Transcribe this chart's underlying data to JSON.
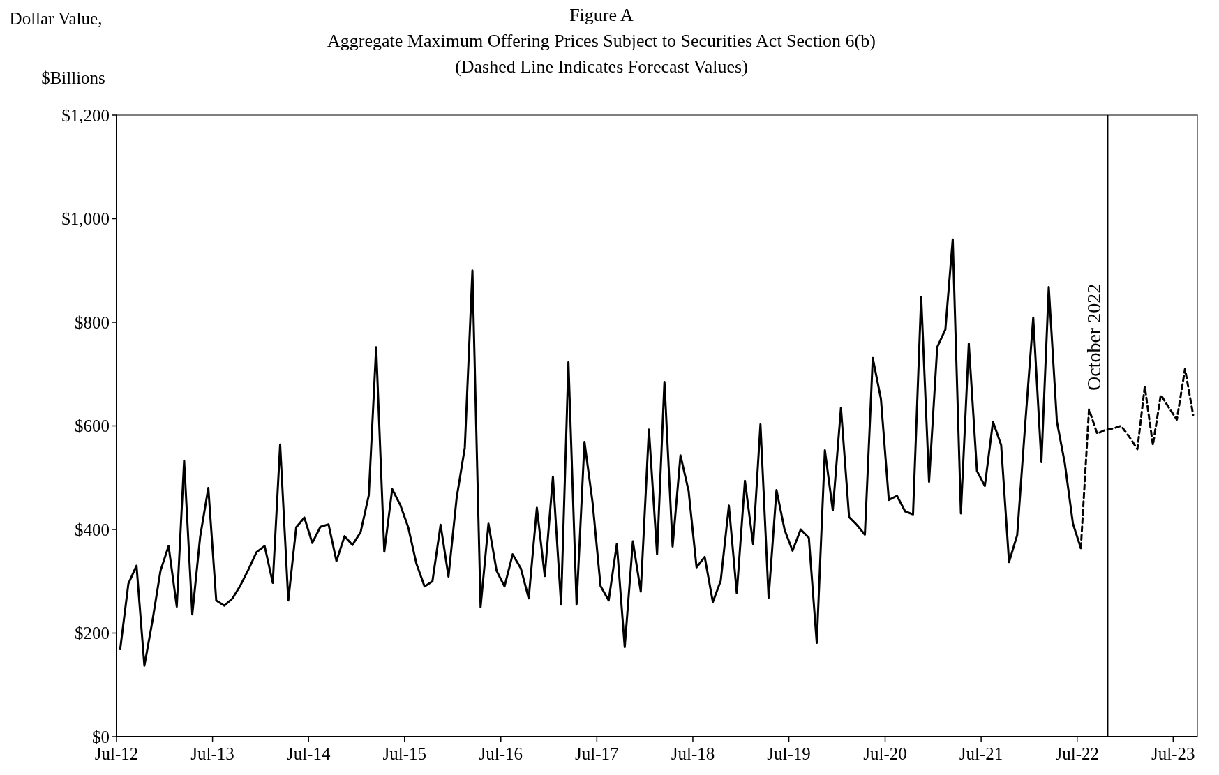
{
  "chart_data": {
    "type": "line",
    "title": "Figure A",
    "subtitle": "Aggregate Maximum Offering Prices Subject to Securities Act Section 6(b)\n(Dashed Line Indicates Forecast Values)",
    "ylabel": "Dollar Value,\n$Billions",
    "xlim": [
      "2012-07-01",
      "2023-10-01"
    ],
    "xticks": [
      {
        "value": "2012-07-01",
        "label": "Jul-12"
      },
      {
        "value": "2013-07-01",
        "label": "Jul-13"
      },
      {
        "value": "2014-07-01",
        "label": "Jul-14"
      },
      {
        "value": "2015-07-01",
        "label": "Jul-15"
      },
      {
        "value": "2016-07-01",
        "label": "Jul-16"
      },
      {
        "value": "2017-07-01",
        "label": "Jul-17"
      },
      {
        "value": "2018-07-01",
        "label": "Jul-18"
      },
      {
        "value": "2019-07-01",
        "label": "Jul-19"
      },
      {
        "value": "2020-07-01",
        "label": "Jul-20"
      },
      {
        "value": "2021-07-01",
        "label": "Jul-21"
      },
      {
        "value": "2022-07-01",
        "label": "Jul-22"
      },
      {
        "value": "2023-07-01",
        "label": "Jul-23"
      }
    ],
    "ylim": [
      0,
      1200
    ],
    "yticks": [
      {
        "value": 0,
        "label": "$0"
      },
      {
        "value": 200,
        "label": "$200"
      },
      {
        "value": 400,
        "label": "$400"
      },
      {
        "value": 600,
        "label": "$600"
      },
      {
        "value": 800,
        "label": "$800"
      },
      {
        "value": 1000,
        "label": "$1,000"
      },
      {
        "value": 1200,
        "label": "$1,200"
      }
    ],
    "grid": false,
    "marker": "none",
    "ref_lines": [
      {
        "axis": "x",
        "value": "2022-10-25",
        "label": "October 2022",
        "color": "#000000",
        "line_style": "solid"
      }
    ],
    "series": [
      {
        "color": "#000000",
        "line_style": "solid",
        "x": [
          "2012-07-15",
          "2012-08-15",
          "2012-09-15",
          "2012-10-15",
          "2012-11-15",
          "2012-12-15",
          "2013-01-15",
          "2013-02-15",
          "2013-03-15",
          "2013-04-15",
          "2013-05-15",
          "2013-06-15",
          "2013-07-15",
          "2013-08-15",
          "2013-09-15",
          "2013-10-15",
          "2013-11-15",
          "2013-12-15",
          "2014-01-15",
          "2014-02-15",
          "2014-03-15",
          "2014-04-15",
          "2014-05-15",
          "2014-06-15",
          "2014-07-15",
          "2014-08-15",
          "2014-09-15",
          "2014-10-15",
          "2014-11-15",
          "2014-12-15",
          "2015-01-15",
          "2015-02-15",
          "2015-03-15",
          "2015-04-15",
          "2015-05-15",
          "2015-06-15",
          "2015-07-15",
          "2015-08-15",
          "2015-09-15",
          "2015-10-15",
          "2015-11-15",
          "2015-12-15",
          "2016-01-15",
          "2016-02-15",
          "2016-03-15",
          "2016-04-15",
          "2016-05-15",
          "2016-06-15",
          "2016-07-15",
          "2016-08-15",
          "2016-09-15",
          "2016-10-15",
          "2016-11-15",
          "2016-12-15",
          "2017-01-15",
          "2017-02-15",
          "2017-03-15",
          "2017-04-15",
          "2017-05-15",
          "2017-06-15",
          "2017-07-15",
          "2017-08-15",
          "2017-09-15",
          "2017-10-15",
          "2017-11-15",
          "2017-12-15",
          "2018-01-15",
          "2018-02-15",
          "2018-03-15",
          "2018-04-15",
          "2018-05-15",
          "2018-06-15",
          "2018-07-15",
          "2018-08-15",
          "2018-09-15",
          "2018-10-15",
          "2018-11-15",
          "2018-12-15",
          "2019-01-15",
          "2019-02-15",
          "2019-03-15",
          "2019-04-15",
          "2019-05-15",
          "2019-06-15",
          "2019-07-15",
          "2019-08-15",
          "2019-09-15",
          "2019-10-15",
          "2019-11-15",
          "2019-12-15",
          "2020-01-15",
          "2020-02-15",
          "2020-03-15",
          "2020-04-15",
          "2020-05-15",
          "2020-06-15",
          "2020-07-15",
          "2020-08-15",
          "2020-09-15",
          "2020-10-15",
          "2020-11-15",
          "2020-12-15",
          "2021-01-15",
          "2021-02-15",
          "2021-03-15",
          "2021-04-15",
          "2021-05-15",
          "2021-06-15",
          "2021-07-15",
          "2021-08-15",
          "2021-09-15",
          "2021-10-15",
          "2021-11-15",
          "2021-12-15",
          "2022-01-15",
          "2022-02-15",
          "2022-03-15",
          "2022-04-15",
          "2022-05-15",
          "2022-06-15",
          "2022-07-15"
        ],
        "values": [
          169,
          295,
          330,
          137,
          225,
          320,
          368,
          251,
          533,
          236,
          386,
          480,
          263,
          253,
          267,
          292,
          323,
          356,
          368,
          297,
          564,
          263,
          404,
          423,
          374,
          405,
          410,
          339,
          387,
          370,
          395,
          466,
          752,
          357,
          478,
          447,
          404,
          334,
          290,
          300,
          409,
          309,
          461,
          558,
          900,
          250,
          411,
          320,
          290,
          352,
          325,
          267,
          442,
          310,
          502,
          255,
          723,
          255,
          569,
          451,
          291,
          263,
          372,
          173,
          377,
          280,
          593,
          352,
          685,
          367,
          543,
          474,
          327,
          347,
          260,
          301,
          446,
          277,
          494,
          372,
          603,
          268,
          476,
          399,
          359,
          400,
          384,
          181,
          553,
          437,
          635,
          424,
          409,
          390,
          731,
          652,
          457,
          465,
          435,
          429,
          849,
          492,
          752,
          786,
          960,
          431,
          759,
          513,
          484,
          608,
          563,
          337,
          389,
          600,
          809,
          530,
          868,
          608,
          528,
          411,
          364
        ]
      },
      {
        "color": "#000000",
        "line_style": "dashed",
        "x": [
          "2022-07-15",
          "2022-08-15",
          "2022-09-15",
          "2022-10-15",
          "2022-11-15",
          "2022-12-15",
          "2023-01-15",
          "2023-02-15",
          "2023-03-15",
          "2023-04-15",
          "2023-05-15",
          "2023-06-15",
          "2023-07-15",
          "2023-08-15",
          "2023-09-15"
        ],
        "values": [
          364,
          632,
          585,
          592,
          595,
          600,
          579,
          555,
          676,
          563,
          660,
          635,
          612,
          710,
          621
        ]
      }
    ]
  }
}
